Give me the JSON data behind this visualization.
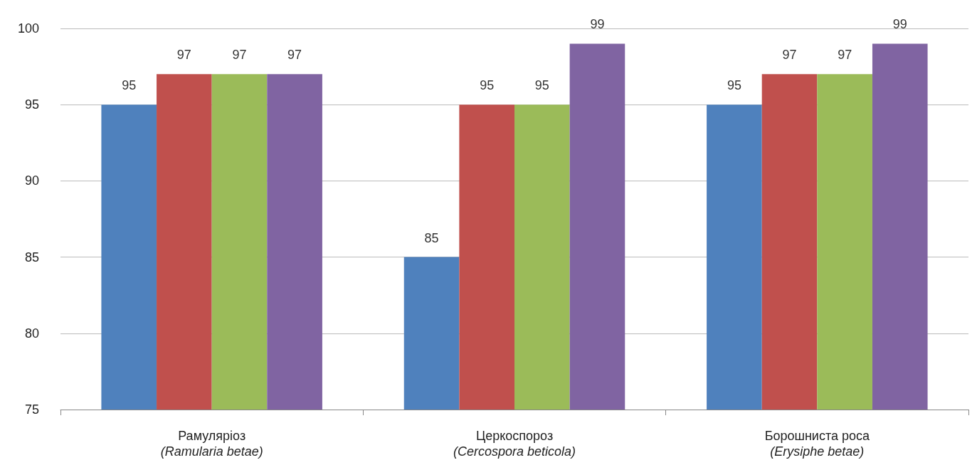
{
  "chart_data": {
    "type": "bar",
    "categories": [
      "Рамуляріоз\n(Ramularia betae)",
      "Церкоспороз\n(Cercospora beticola)",
      "Борошниста роса\n(Erysiphe betae)"
    ],
    "series": [
      {
        "color": "#4f81bd",
        "values": [
          95,
          85,
          95
        ]
      },
      {
        "color": "#c0504d",
        "values": [
          97,
          95,
          97
        ]
      },
      {
        "color": "#9bbb59",
        "values": [
          97,
          95,
          97
        ]
      },
      {
        "color": "#8064a2",
        "values": [
          97,
          99,
          99
        ]
      }
    ],
    "ylim": [
      75,
      100
    ],
    "yticks": [
      75,
      80,
      85,
      90,
      95,
      100
    ],
    "grid": "y",
    "data_labels": true
  }
}
